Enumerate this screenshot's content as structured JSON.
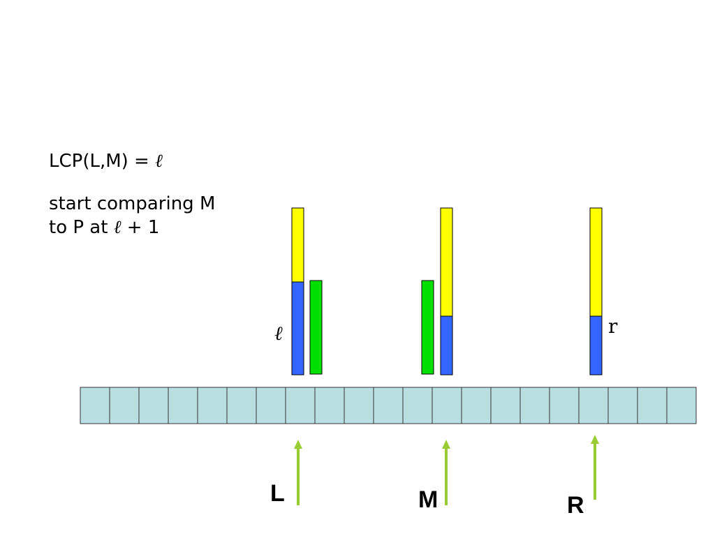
{
  "text": {
    "lcp_prefix": "LCP(L,M) = ",
    "ell": "ℓ",
    "line2": "start comparing M",
    "line3_prefix": "to P at ",
    "line3_suffix": " + 1"
  },
  "labels": {
    "ell": "ℓ",
    "r": "r",
    "L": "L",
    "M": "M",
    "R": "R"
  },
  "array": {
    "cells": 21
  },
  "colors": {
    "yellow": "#ffff00",
    "blue": "#3366ff",
    "green": "#00e000",
    "cell_fill": "#b9dfe3",
    "cell_stroke": "#333333",
    "arrow": "#99cc33"
  }
}
